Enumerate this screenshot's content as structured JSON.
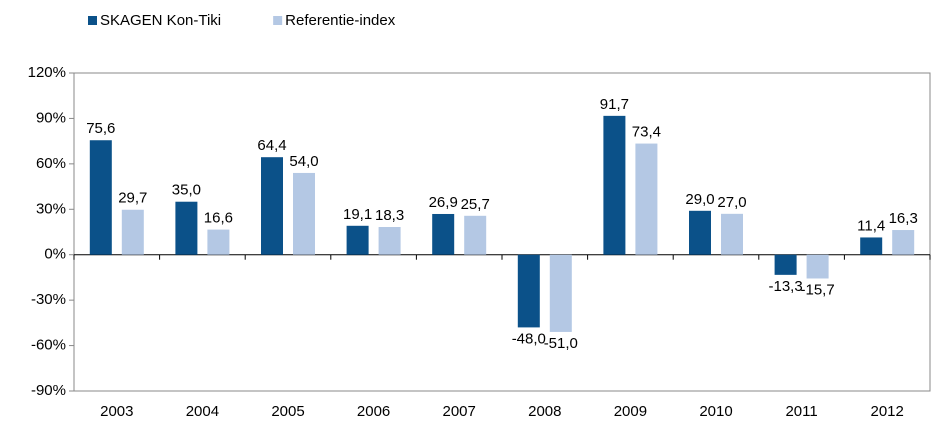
{
  "chart_data": {
    "type": "bar",
    "categories": [
      "2003",
      "2004",
      "2005",
      "2006",
      "2007",
      "2008",
      "2009",
      "2010",
      "2011",
      "2012"
    ],
    "series": [
      {
        "name": "SKAGEN Kon-Tiki",
        "color": "#0b5189",
        "values": [
          75.6,
          35.0,
          64.4,
          19.1,
          26.9,
          -48.0,
          91.7,
          29.0,
          -13.3,
          11.4
        ],
        "value_labels": [
          "75,6",
          "35,0",
          "64,4",
          "19,1",
          "26,9",
          "-48,0",
          "91,7",
          "29,0",
          "-13,3",
          "11,4"
        ]
      },
      {
        "name": "Referentie-index",
        "color": "#b4c8e4",
        "values": [
          29.7,
          16.6,
          54.0,
          18.3,
          25.7,
          -51.0,
          73.4,
          27.0,
          -15.7,
          16.3
        ],
        "value_labels": [
          "29,7",
          "16,6",
          "54,0",
          "18,3",
          "25,7",
          "-51,0",
          "73,4",
          "27,0",
          "-15,7",
          "16,3"
        ]
      }
    ],
    "ylim": [
      -90,
      120
    ],
    "yticks": [
      {
        "value": -90,
        "label": "-90%"
      },
      {
        "value": -60,
        "label": "-60%"
      },
      {
        "value": -30,
        "label": "-30%"
      },
      {
        "value": 0,
        "label": "0%"
      },
      {
        "value": 30,
        "label": "30%"
      },
      {
        "value": 60,
        "label": "60%"
      },
      {
        "value": 90,
        "label": "90%"
      },
      {
        "value": 120,
        "label": "120%"
      }
    ],
    "legend": "top-left"
  }
}
